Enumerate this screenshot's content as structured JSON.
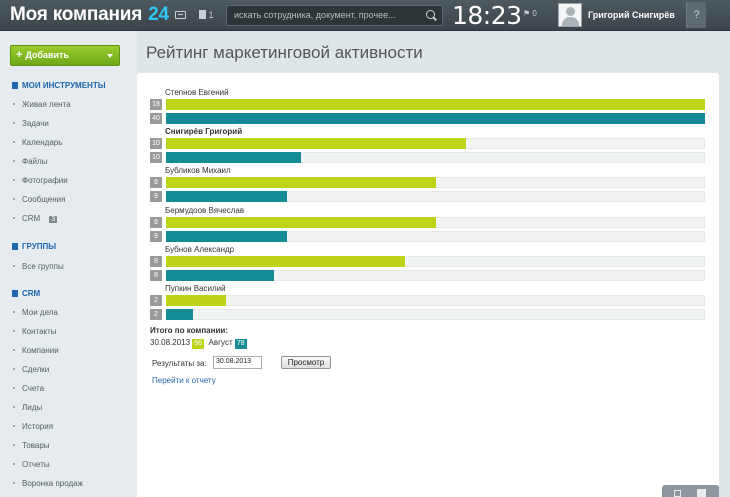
{
  "header": {
    "brand_name": "Моя компания",
    "brand_number": "24",
    "notif_count": "1",
    "search_placeholder": "искать сотрудника, документ, прочее...",
    "clock": "18:23",
    "flag_count": "0",
    "user_name": "Григорий Снигирёв",
    "help": "?"
  },
  "sidebar": {
    "add_button": "Добавить",
    "sections": [
      {
        "title": "МОИ ИНСТРУМЕНТЫ",
        "items": [
          "Живая лента",
          "Задачи",
          "Календарь",
          "Файлы",
          "Фотографии",
          "Сообщения",
          "CRM"
        ]
      },
      {
        "title": "ГРУППЫ",
        "items": [
          "Все группы"
        ]
      },
      {
        "title": "CRM",
        "items": [
          "Мои дела",
          "Контакты",
          "Компании",
          "Сделки",
          "Счета",
          "Лиды",
          "История",
          "Товары",
          "Отчеты",
          "Воронка продаж"
        ]
      }
    ],
    "crm_badge": "3"
  },
  "main": {
    "title": "Рейтинг маркетинговой активности",
    "people": [
      {
        "name": "Степнов Евгений",
        "green": 18,
        "teal": 40,
        "bold": false
      },
      {
        "name": "Снигирёв Григорий",
        "green": 10,
        "teal": 10,
        "bold": true
      },
      {
        "name": "Бубликов Михаил",
        "green": 9,
        "teal": 9,
        "bold": false
      },
      {
        "name": "Бермудоов Вячеслав",
        "green": 9,
        "teal": 9,
        "bold": false
      },
      {
        "name": "Бубнов Александр",
        "green": 8,
        "teal": 8,
        "bold": false
      },
      {
        "name": "Пупкин Василий",
        "green": 2,
        "teal": 2,
        "bold": false
      }
    ],
    "bar_fill_fraction": [
      [
        1.0,
        1.0
      ],
      [
        0.556,
        0.25
      ],
      [
        0.5,
        0.225
      ],
      [
        0.5,
        0.225
      ],
      [
        0.444,
        0.2
      ],
      [
        0.111,
        0.05
      ]
    ],
    "total_title": "Итого по компании:",
    "total_date": "30.08.2013",
    "total_day_value": "56",
    "total_month_label": "Август",
    "total_month_value": "78",
    "results_label": "Результаты за:",
    "results_date": "30.08.2013",
    "view_button": "Просмотр",
    "report_link": "Перейти к отчету"
  },
  "colors": {
    "green": "#bdd41a",
    "teal": "#158c95",
    "link": "#2066b0"
  }
}
